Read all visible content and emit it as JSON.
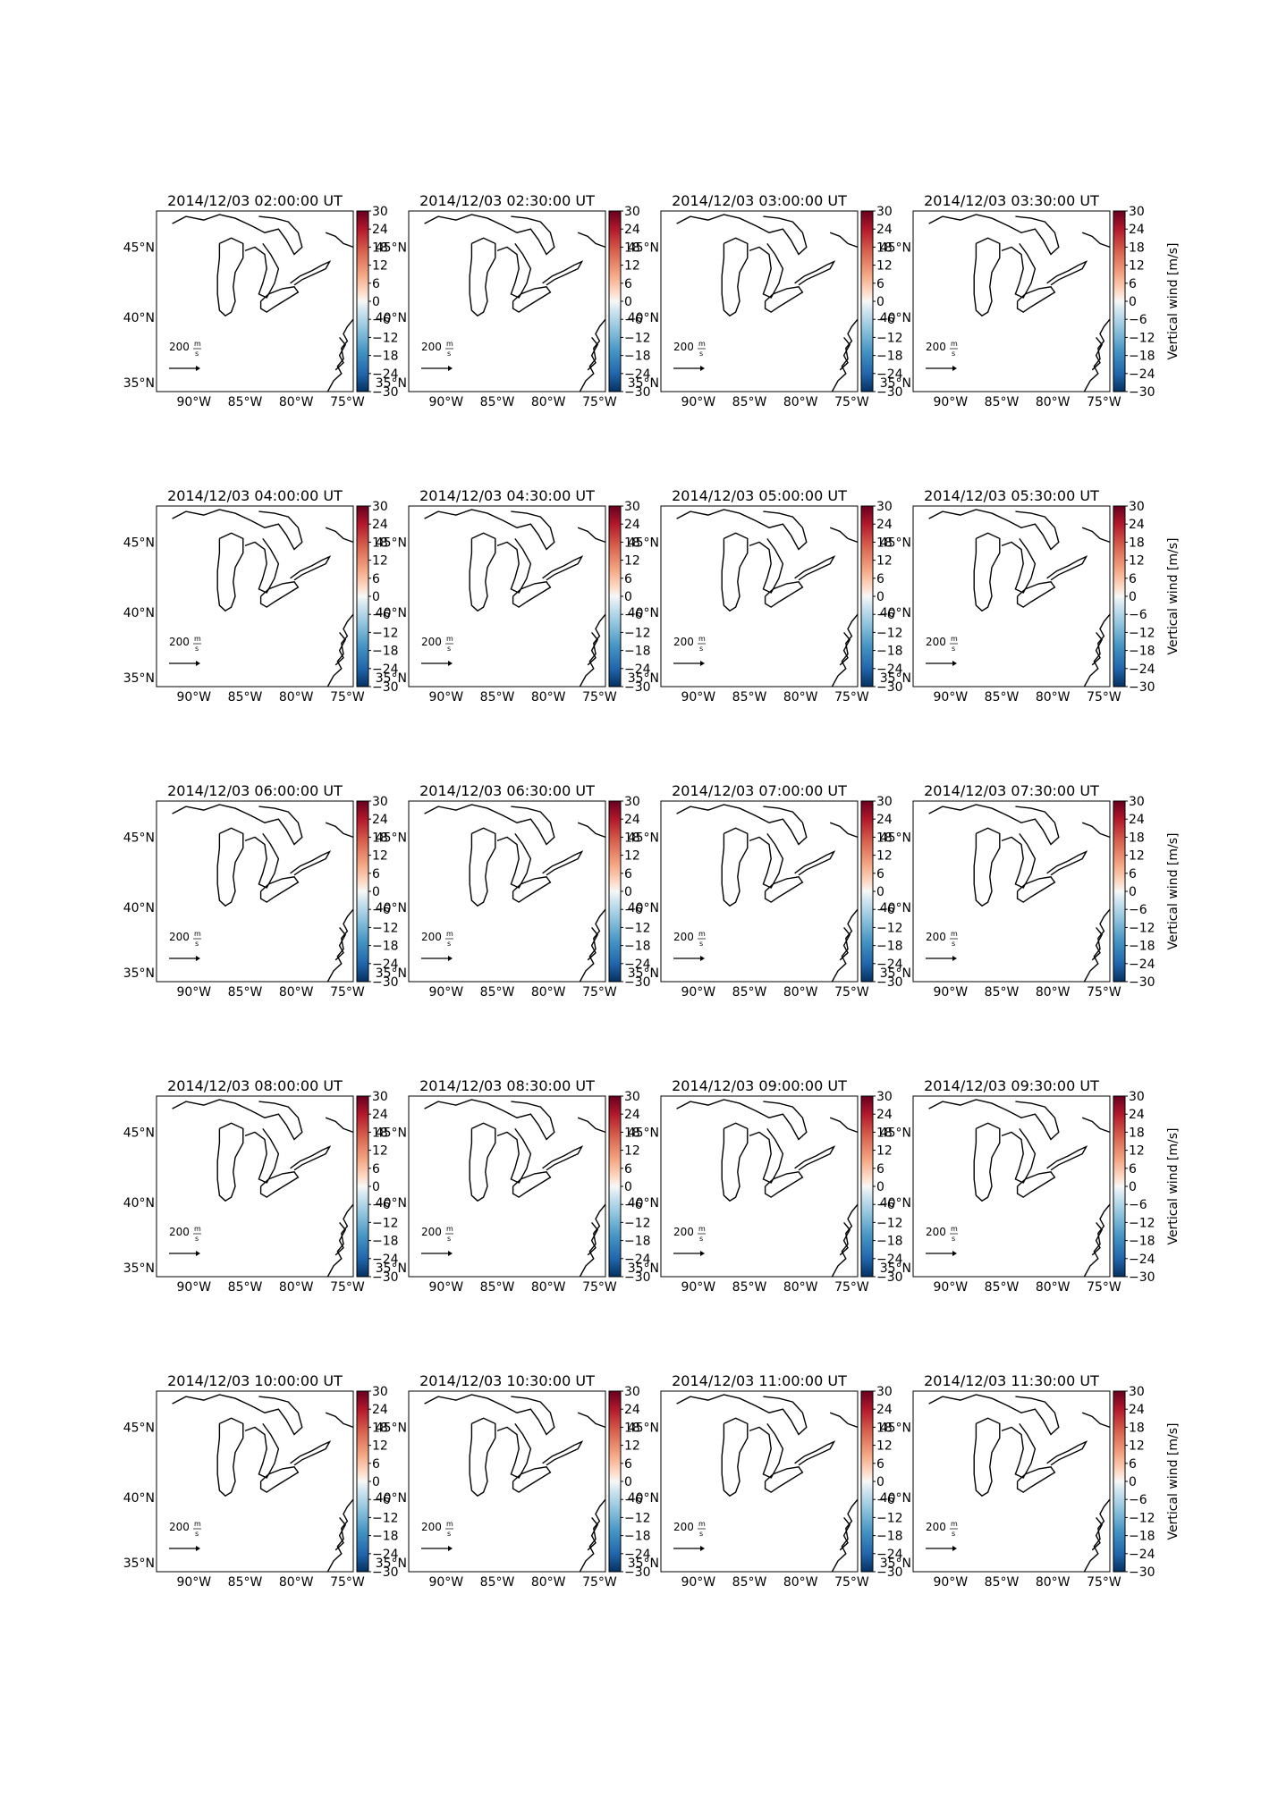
{
  "figure": {
    "times": [
      "2014/12/03 02:00:00 UT",
      "2014/12/03 02:30:00 UT",
      "2014/12/03 03:00:00 UT",
      "2014/12/03 03:30:00 UT",
      "2014/12/03 04:00:00 UT",
      "2014/12/03 04:30:00 UT",
      "2014/12/03 05:00:00 UT",
      "2014/12/03 05:30:00 UT",
      "2014/12/03 06:00:00 UT",
      "2014/12/03 06:30:00 UT",
      "2014/12/03 07:00:00 UT",
      "2014/12/03 07:30:00 UT",
      "2014/12/03 08:00:00 UT",
      "2014/12/03 08:30:00 UT",
      "2014/12/03 09:00:00 UT",
      "2014/12/03 09:30:00 UT",
      "2014/12/03 10:00:00 UT",
      "2014/12/03 10:30:00 UT",
      "2014/12/03 11:00:00 UT",
      "2014/12/03 11:30:00 UT"
    ],
    "lon_ticks": [
      "90°W",
      "85°W",
      "80°W",
      "75°W"
    ],
    "lat_ticks": [
      "45°N",
      "40°N",
      "35°N"
    ],
    "colorbar": {
      "label": "Vertical wind [m/s]",
      "ticks": [
        "30",
        "24",
        "18",
        "12",
        "6",
        "0",
        "−6",
        "−12",
        "−18",
        "−24",
        "−30"
      ],
      "min": -30,
      "max": 30,
      "colormap": "RdBu_r",
      "color_top": "#67001f",
      "color_mid": "#f7f7f7",
      "color_bottom": "#053061"
    },
    "reference_vector": {
      "value": "200",
      "unit_num": "m",
      "unit_den": "s"
    },
    "grid": {
      "rows": 5,
      "cols": 4
    },
    "map_region": {
      "lon_min": -94,
      "lon_max": -75,
      "lat_min": 34,
      "lat_max": 48
    }
  }
}
